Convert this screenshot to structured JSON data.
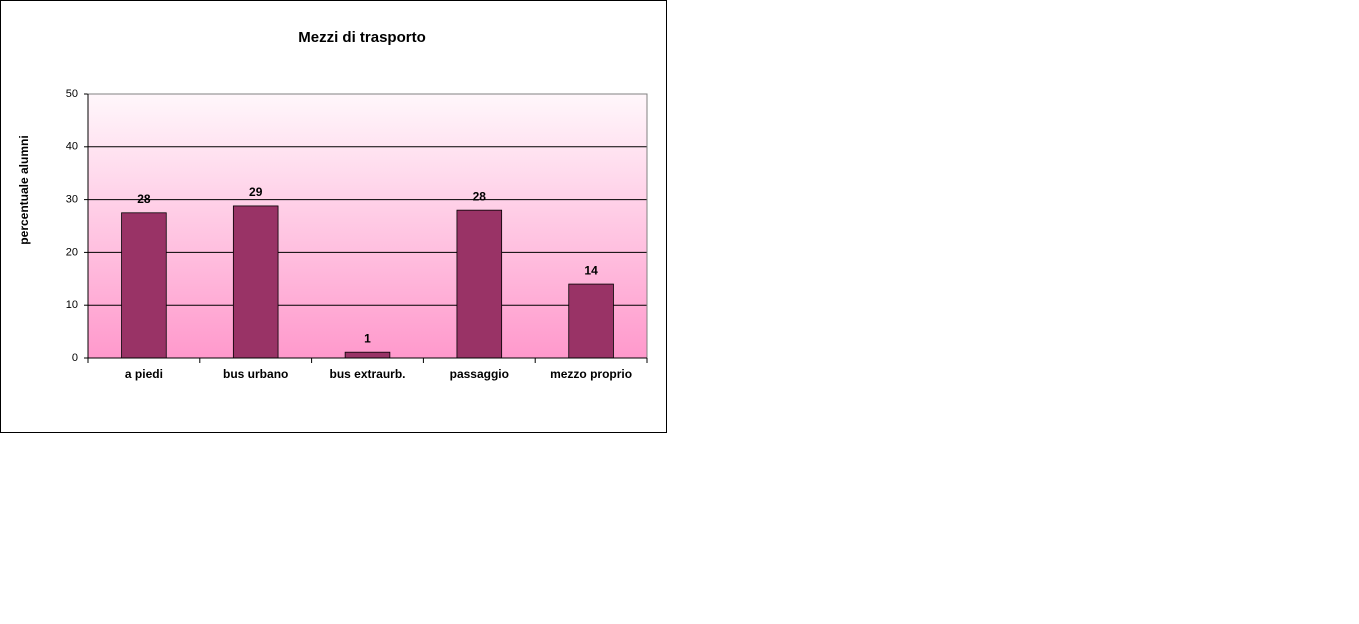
{
  "chart_data": {
    "type": "bar",
    "title": "Mezzi di trasporto",
    "y_label": "percentuale alumni",
    "categories": [
      "a piedi",
      "bus urbano",
      "bus extraurb.",
      "passaggio",
      "mezzo proprio"
    ],
    "values": [
      27.5,
      28.8,
      1.1,
      28.0,
      14.0
    ],
    "value_labels": [
      "28",
      "29",
      "1",
      "28",
      "14"
    ],
    "color": "#993366",
    "ylim": [
      0,
      50
    ],
    "yticks": [
      0,
      10,
      20,
      30,
      40,
      50
    ],
    "grid": true
  }
}
